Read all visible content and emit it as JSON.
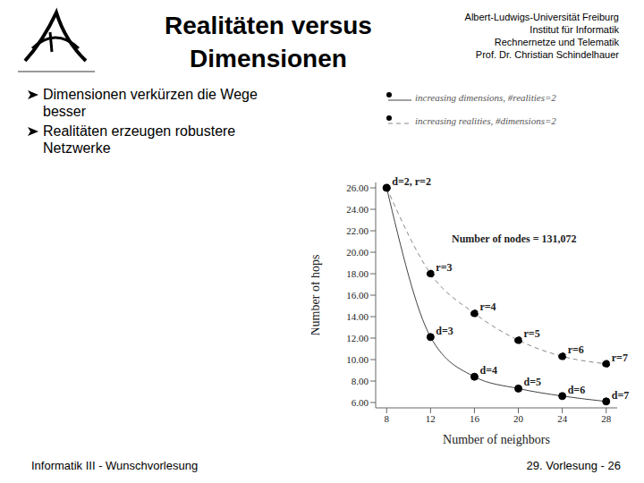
{
  "slide": {
    "title": "Realitäten versus Dimensionen",
    "header": [
      "Albert-Ludwigs-Universität Freiburg",
      "Institut für Informatik",
      "Rechnernetze und Telematik",
      "Prof. Dr. Christian Schindelhauer"
    ],
    "bullets": [
      "Dimensionen verkürzen die Wege besser",
      "Realitäten erzeugen robustere Netzwerke"
    ],
    "footer_left": "Informatik III - Wunschvorlesung",
    "footer_right": "29. Vorlesung - 26"
  },
  "chart_data": {
    "type": "line",
    "x_label": "Number of neighbors",
    "y_label": "Number of hops",
    "annotation": "Number of nodes = 131,072",
    "x": [
      8,
      12,
      16,
      20,
      24,
      28
    ],
    "series": [
      {
        "name": "increasing dimensions, #realities=2",
        "color": "#444444",
        "line_style": "solid",
        "marker": "circle",
        "values": [
          26,
          12.1,
          8.4,
          7.3,
          6.6,
          6.1
        ],
        "point_labels": [
          "d=2, r=2",
          "d=3",
          "d=4",
          "d=5",
          "d=6",
          "d=7"
        ]
      },
      {
        "name": "increasing realities, #dimensions=2",
        "color": "#888888",
        "line_style": "dashed",
        "marker": "circle",
        "values": [
          26,
          18,
          14.3,
          11.8,
          10.3,
          9.6
        ],
        "point_labels": [
          null,
          "r=3",
          "r=4",
          "r=5",
          "r=6",
          "r=7"
        ]
      }
    ],
    "xlim": [
      7,
      29
    ],
    "xticks": [
      8,
      12,
      16,
      20,
      24,
      28
    ],
    "ylim": [
      5.5,
      26.5
    ],
    "yticks": [
      {
        "value": 6,
        "label": "6.00"
      },
      {
        "value": 8,
        "label": "8.00"
      },
      {
        "value": 10,
        "label": "10.00"
      },
      {
        "value": 12,
        "label": "12.00"
      },
      {
        "value": 14,
        "label": "14.00"
      },
      {
        "value": 16,
        "label": "16.00"
      },
      {
        "value": 18,
        "label": "18.00"
      },
      {
        "value": 20,
        "label": "20.00"
      },
      {
        "value": 22,
        "label": "22.00"
      },
      {
        "value": 24,
        "label": "24.00"
      },
      {
        "value": 26,
        "label": "26.00"
      }
    ],
    "grid": false,
    "legend": "top"
  }
}
